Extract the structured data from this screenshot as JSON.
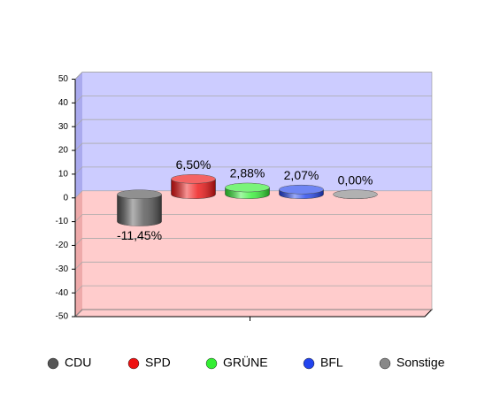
{
  "chart_data": {
    "type": "bar3d",
    "categories": [
      null
    ],
    "series": [
      {
        "name": "CDU",
        "color": "#555555",
        "values": [
          -11.45
        ],
        "value_labels": [
          "-11,45%"
        ]
      },
      {
        "name": "SPD",
        "color": "#ee1111",
        "values": [
          6.5
        ],
        "value_labels": [
          "6,50%"
        ]
      },
      {
        "name": "GRÜNE",
        "color": "#33ee33",
        "values": [
          2.88
        ],
        "value_labels": [
          "2,88%"
        ]
      },
      {
        "name": "BFL",
        "color": "#2244ee",
        "values": [
          2.07
        ],
        "value_labels": [
          "2,07%"
        ]
      },
      {
        "name": "Sonstige",
        "color": "#888888",
        "values": [
          0.0
        ],
        "value_labels": [
          "0,00%"
        ]
      }
    ],
    "ylim": [
      -50,
      50
    ],
    "yticks": [
      -50,
      -40,
      -30,
      -20,
      -10,
      0,
      10,
      20,
      30,
      40,
      50
    ],
    "grid": true,
    "legend": "bottom"
  }
}
